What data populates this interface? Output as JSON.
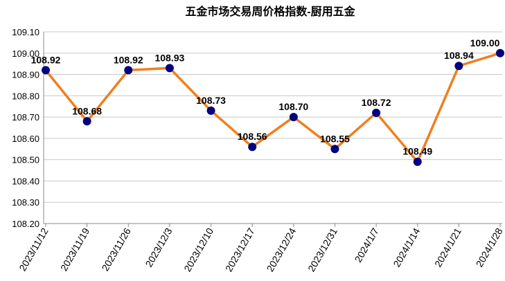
{
  "chart_data": {
    "type": "line",
    "title": "五金市场交易周价格指数-厨用五金",
    "categories": [
      "2023/11/12",
      "2023/11/19",
      "2023/11/26",
      "2023/12/3",
      "2023/12/10",
      "2023/12/17",
      "2023/12/24",
      "2023/12/31",
      "2024/1/7",
      "2024/1/14",
      "2024/1/21",
      "2024/1/28"
    ],
    "series": [
      {
        "name": "厨用五金",
        "color": "#f07f1e",
        "marker_color": "#000080",
        "values": [
          108.92,
          108.68,
          108.92,
          108.93,
          108.73,
          108.56,
          108.7,
          108.55,
          108.72,
          108.49,
          108.94,
          109.0
        ],
        "value_labels": [
          "108.92",
          "108.68",
          "108.92",
          "108.93",
          "108.73",
          "108.56",
          "108.70",
          "108.55",
          "108.72",
          "108.49",
          "108.94",
          "109.00"
        ]
      }
    ],
    "ylim": [
      108.2,
      109.1
    ],
    "yticks": [
      {
        "value": 108.2,
        "label": "108.20"
      },
      {
        "value": 108.3,
        "label": "108.30"
      },
      {
        "value": 108.4,
        "label": "108.40"
      },
      {
        "value": 108.5,
        "label": "108.50"
      },
      {
        "value": 108.6,
        "label": "108.60"
      },
      {
        "value": 108.7,
        "label": "108.70"
      },
      {
        "value": 108.8,
        "label": "108.80"
      },
      {
        "value": 108.9,
        "label": "108.90"
      },
      {
        "value": 109.0,
        "label": "109.00"
      },
      {
        "value": 109.1,
        "label": "109.10"
      }
    ],
    "grid": true
  }
}
